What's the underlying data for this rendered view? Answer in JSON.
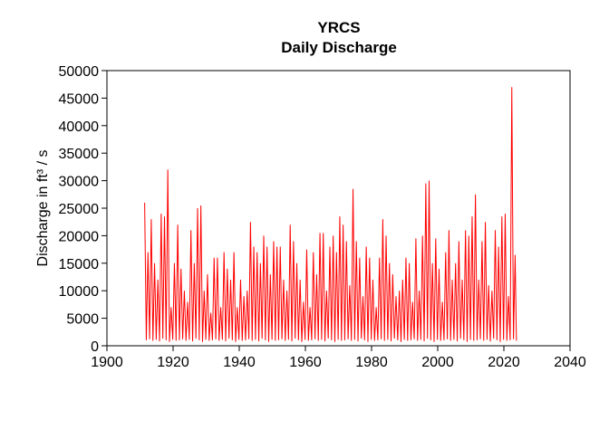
{
  "chart_data": {
    "type": "line",
    "title": "YRCS",
    "subtitle": "Daily Discharge",
    "ylabel": "Discharge in ft³ / s",
    "xlim": [
      1900,
      2040
    ],
    "xticks": [
      1900,
      1920,
      1940,
      1960,
      1980,
      2000,
      2020,
      2040
    ],
    "ylim": [
      0,
      50000
    ],
    "yticks": [
      0,
      5000,
      10000,
      15000,
      20000,
      25000,
      30000,
      35000,
      40000,
      45000,
      50000
    ],
    "grid": false,
    "series": [
      {
        "color": "#ff0000",
        "x": [
          1911.4,
          1911.9,
          1912.4,
          1912.9,
          1913.4,
          1913.9,
          1914.4,
          1914.9,
          1915.4,
          1915.9,
          1916.4,
          1916.9,
          1917.4,
          1917.9,
          1918.4,
          1918.9,
          1919.4,
          1919.9,
          1920.4,
          1920.9,
          1921.4,
          1921.9,
          1922.4,
          1922.9,
          1923.4,
          1923.9,
          1924.4,
          1924.9,
          1925.4,
          1925.9,
          1926.4,
          1926.9,
          1927.4,
          1927.9,
          1928.4,
          1928.9,
          1929.4,
          1929.9,
          1930.4,
          1930.9,
          1931.4,
          1931.9,
          1932.4,
          1932.9,
          1933.4,
          1933.9,
          1934.4,
          1934.9,
          1935.4,
          1935.9,
          1936.4,
          1936.9,
          1937.4,
          1937.9,
          1938.4,
          1938.9,
          1939.4,
          1939.9,
          1940.4,
          1940.9,
          1941.4,
          1941.9,
          1942.4,
          1942.9,
          1943.4,
          1943.9,
          1944.4,
          1944.9,
          1945.4,
          1945.9,
          1946.4,
          1946.9,
          1947.4,
          1947.9,
          1948.4,
          1948.9,
          1949.4,
          1949.9,
          1950.4,
          1950.9,
          1951.4,
          1951.9,
          1952.4,
          1952.9,
          1953.4,
          1953.9,
          1954.4,
          1954.9,
          1955.4,
          1955.9,
          1956.4,
          1956.9,
          1957.4,
          1957.9,
          1958.4,
          1958.9,
          1959.4,
          1959.9,
          1960.4,
          1960.9,
          1961.4,
          1961.9,
          1962.4,
          1962.9,
          1963.4,
          1963.9,
          1964.4,
          1964.9,
          1965.4,
          1965.9,
          1966.4,
          1966.9,
          1967.4,
          1967.9,
          1968.4,
          1968.9,
          1969.4,
          1969.9,
          1970.4,
          1970.9,
          1971.4,
          1971.9,
          1972.4,
          1972.9,
          1973.4,
          1973.9,
          1974.4,
          1974.9,
          1975.4,
          1975.9,
          1976.4,
          1976.9,
          1977.4,
          1977.9,
          1978.4,
          1978.9,
          1979.4,
          1979.9,
          1980.4,
          1980.9,
          1981.4,
          1981.9,
          1982.4,
          1982.9,
          1983.4,
          1983.9,
          1984.4,
          1984.9,
          1985.4,
          1985.9,
          1986.4,
          1986.9,
          1987.4,
          1987.9,
          1988.4,
          1988.9,
          1989.4,
          1989.9,
          1990.4,
          1990.9,
          1991.4,
          1991.9,
          1992.4,
          1992.9,
          1993.4,
          1993.9,
          1994.4,
          1994.9,
          1995.4,
          1995.9,
          1996.4,
          1996.9,
          1997.4,
          1997.9,
          1998.4,
          1998.9,
          1999.4,
          1999.9,
          2000.4,
          2000.9,
          2001.4,
          2001.9,
          2002.4,
          2002.9,
          2003.4,
          2003.9,
          2004.4,
          2004.9,
          2005.4,
          2005.9,
          2006.4,
          2006.9,
          2007.4,
          2007.9,
          2008.4,
          2008.9,
          2009.4,
          2009.9,
          2010.4,
          2010.9,
          2011.4,
          2011.9,
          2012.4,
          2012.9,
          2013.4,
          2013.9,
          2014.4,
          2014.9,
          2015.4,
          2015.9,
          2016.4,
          2016.9,
          2017.4,
          2017.9,
          2018.4,
          2018.9,
          2019.4,
          2019.9,
          2020.4,
          2020.9,
          2021.4,
          2021.9,
          2022.4,
          2022.9,
          2023.4,
          2023.8
        ],
        "values": [
          26000,
          1000,
          17000,
          1200,
          23000,
          900,
          15000,
          1100,
          12000,
          800,
          24000,
          1300,
          23500,
          1000,
          32000,
          700,
          7000,
          1100,
          15000,
          900,
          22000,
          1000,
          14000,
          1200,
          10000,
          900,
          8000,
          1100,
          21000,
          800,
          15000,
          1300,
          25000,
          1000,
          25500,
          700,
          10000,
          1100,
          13000,
          900,
          6000,
          1000,
          16000,
          1200,
          16000,
          900,
          7000,
          1100,
          17000,
          800,
          14000,
          1300,
          12000,
          1000,
          17000,
          700,
          7000,
          1100,
          12000,
          900,
          9000,
          1000,
          10000,
          1200,
          22500,
          900,
          18000,
          1100,
          17000,
          800,
          15000,
          1300,
          20000,
          1000,
          18000,
          700,
          13000,
          1100,
          19000,
          900,
          18000,
          1000,
          18000,
          1200,
          12000,
          900,
          10000,
          1100,
          22000,
          800,
          19000,
          1300,
          15000,
          1000,
          12000,
          700,
          8000,
          1100,
          17500,
          900,
          7000,
          1000,
          17000,
          1200,
          13000,
          900,
          20500,
          1100,
          20500,
          800,
          10000,
          1300,
          18000,
          1000,
          20000,
          700,
          17000,
          1100,
          23500,
          900,
          22000,
          1000,
          19000,
          1200,
          11000,
          900,
          28500,
          1100,
          19000,
          800,
          16000,
          1300,
          9000,
          1000,
          18000,
          700,
          16000,
          1100,
          12000,
          900,
          7000,
          1000,
          16000,
          1200,
          23000,
          900,
          20000,
          1100,
          15000,
          800,
          13000,
          1300,
          9000,
          1000,
          10000,
          700,
          12000,
          1100,
          16000,
          900,
          15000,
          1000,
          8000,
          1200,
          19500,
          900,
          10000,
          1100,
          20000,
          800,
          29500,
          1300,
          30000,
          1000,
          15000,
          700,
          19500,
          1100,
          14000,
          900,
          8000,
          1000,
          17000,
          1200,
          21000,
          900,
          12000,
          1100,
          15000,
          800,
          19000,
          1300,
          12000,
          1000,
          21000,
          700,
          20000,
          1100,
          23500,
          900,
          27500,
          1000,
          12000,
          1200,
          19000,
          900,
          22500,
          1100,
          11000,
          800,
          10000,
          1300,
          21000,
          1000,
          18000,
          700,
          23500,
          1100,
          24000,
          900,
          9000,
          1000,
          47000,
          1200,
          16500,
          900
        ]
      }
    ]
  }
}
